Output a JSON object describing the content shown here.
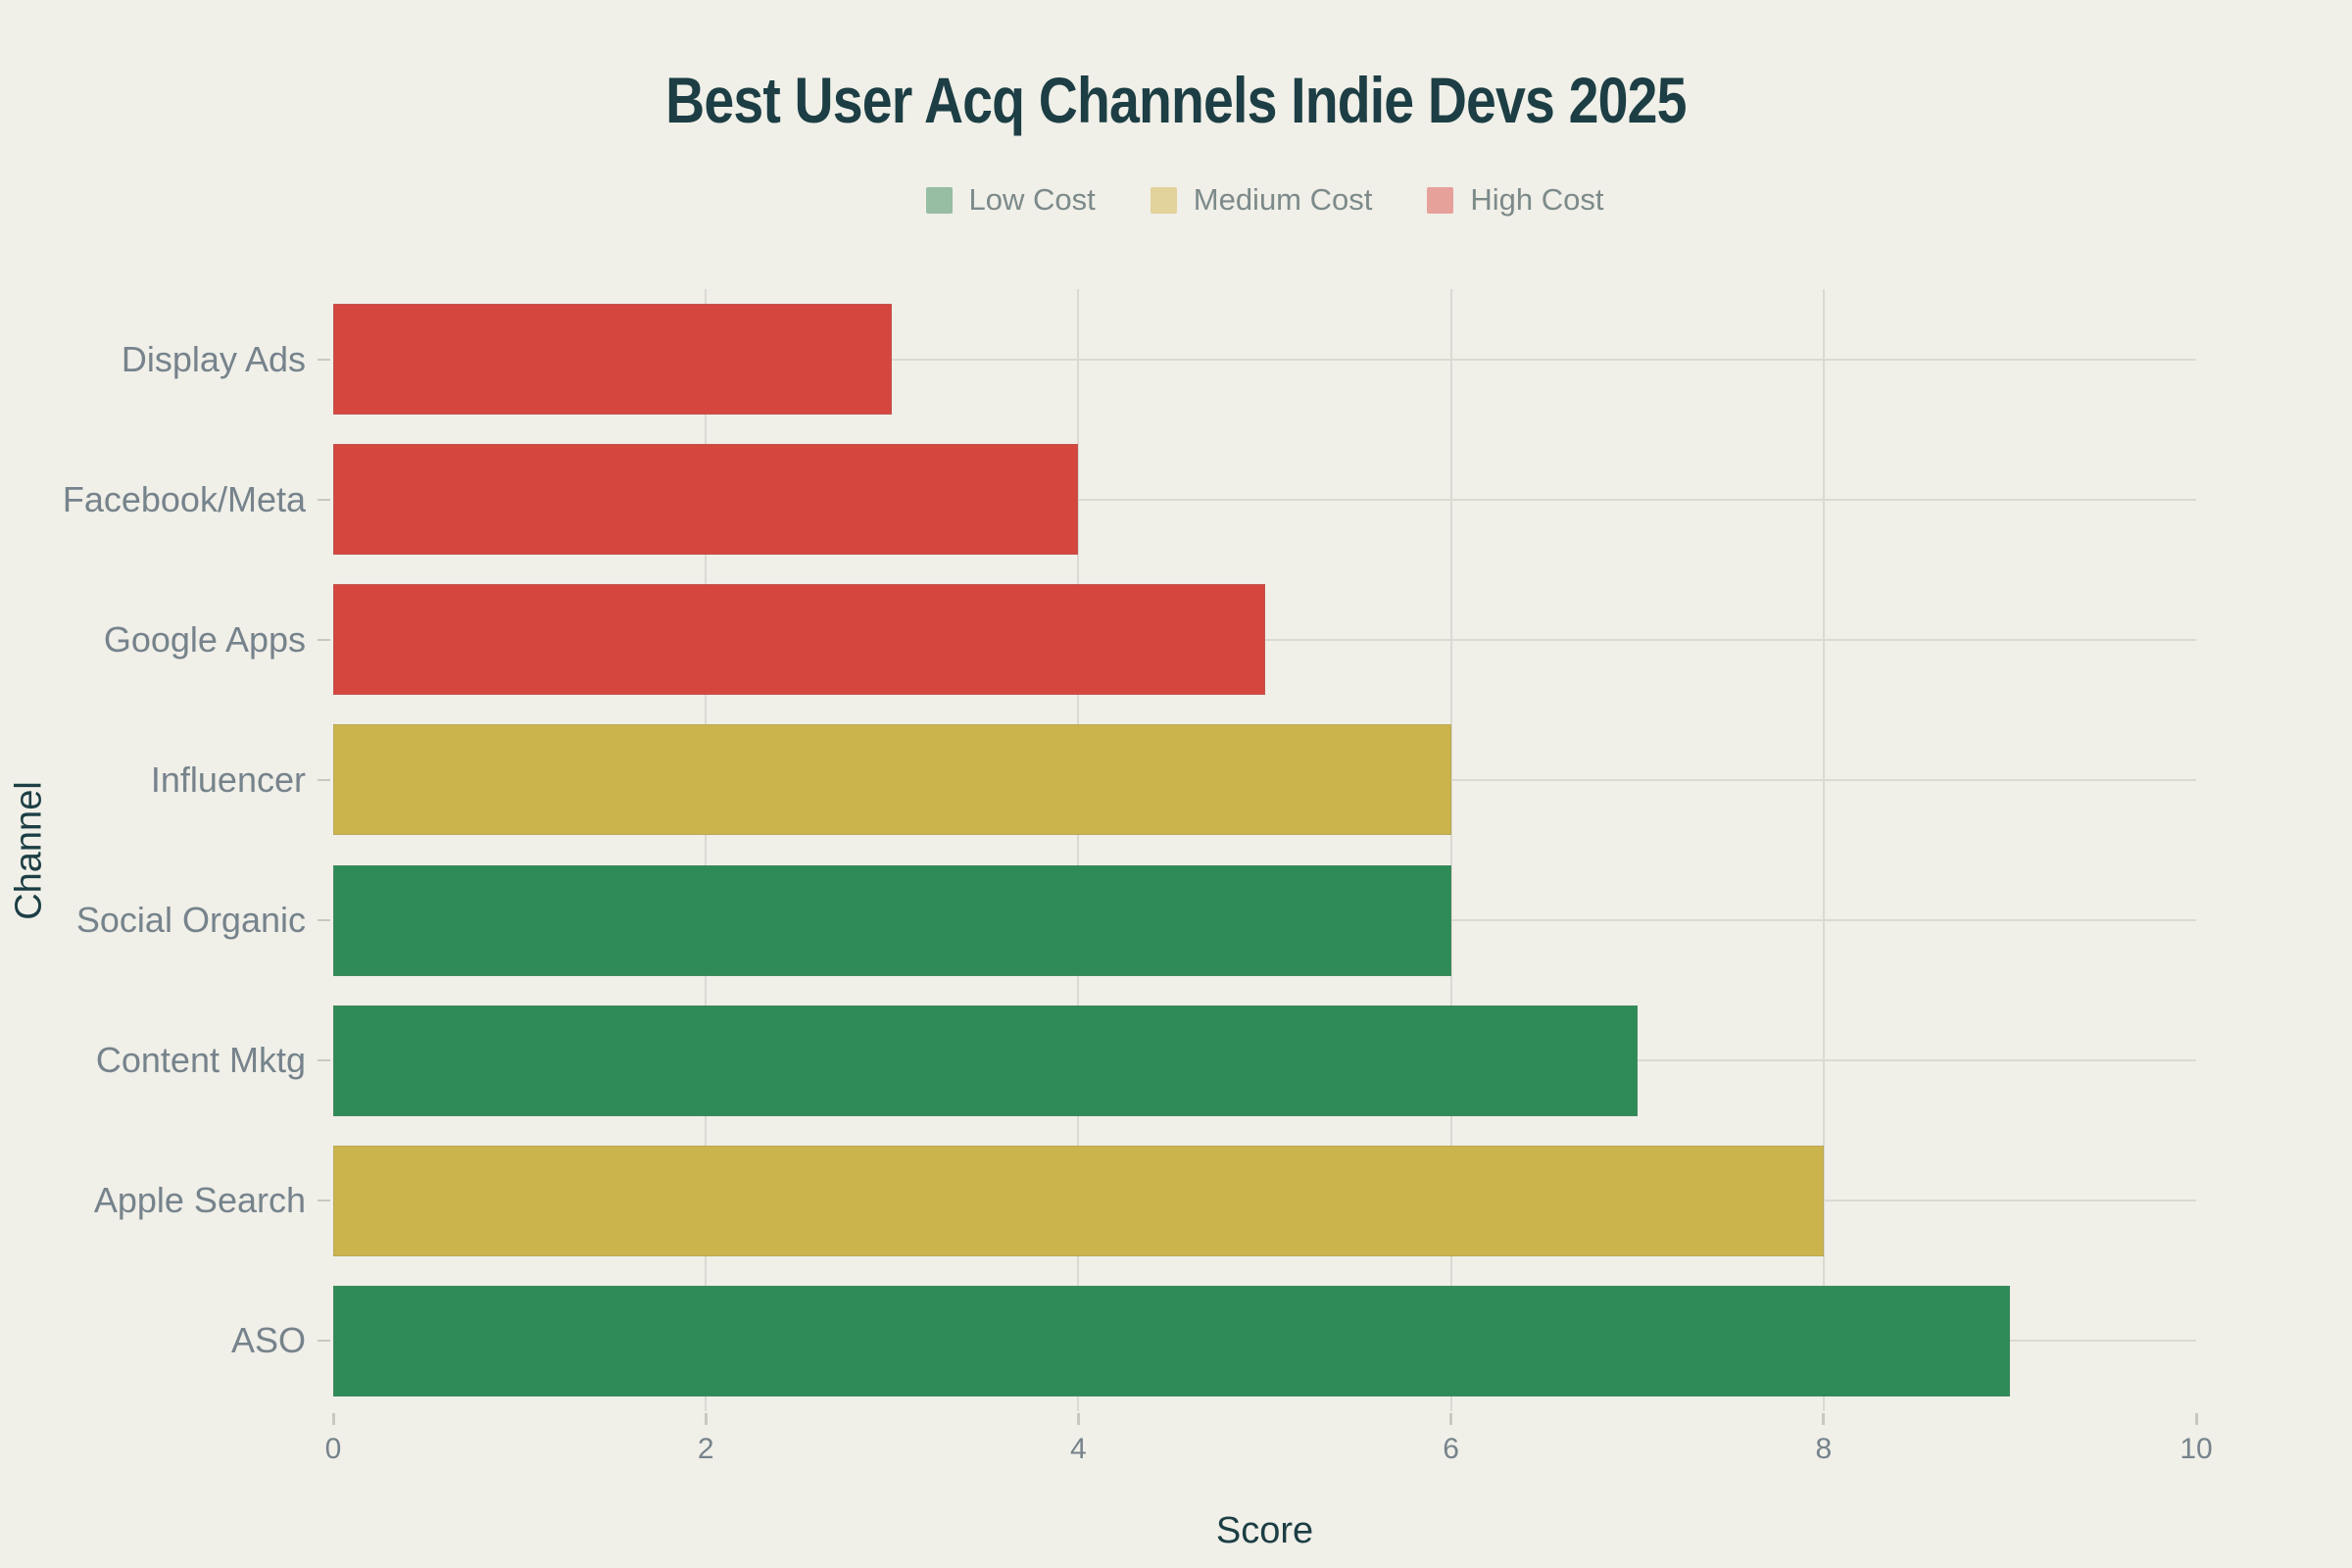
{
  "title": "Best User Acq Channels Indie Devs 2025",
  "colors": {
    "background": "#F0EFE8",
    "title_text": "#1C3E44",
    "axis_title_text": "#1C3E44",
    "tick_text": "#76838C",
    "legend_text": "#7C8A8A",
    "gridline": "#DBDAD2",
    "tick_mark": "#C9C8C0",
    "bar_low_cost": "#2E8B57",
    "bar_medium_cost": "#CCB44C",
    "bar_high_cost": "#D5463F",
    "legend_swatch_low": "#97BDA3",
    "legend_swatch_medium": "#E2D29B",
    "legend_swatch_high": "#E6A19B"
  },
  "legend": {
    "items": [
      {
        "label": "Low Cost",
        "tier": "low"
      },
      {
        "label": "Medium Cost",
        "tier": "medium"
      },
      {
        "label": "High Cost",
        "tier": "high"
      }
    ]
  },
  "chart_data": {
    "type": "bar",
    "orientation": "horizontal",
    "title": "Best User Acq Channels Indie Devs 2025",
    "xlabel": "Score",
    "ylabel": "Channel",
    "xlim": [
      0,
      10
    ],
    "xticks": [
      0,
      2,
      4,
      6,
      8,
      10
    ],
    "grid": true,
    "legend_position": "top-center",
    "categories_top_to_bottom": [
      "Display Ads",
      "Facebook/Meta",
      "Google Apps",
      "Influencer",
      "Social Organic",
      "Content Mktg",
      "Apple Search",
      "ASO"
    ],
    "values": [
      3,
      4,
      5,
      6,
      6,
      7,
      8,
      9
    ],
    "cost_tier": [
      "high",
      "high",
      "high",
      "medium",
      "low",
      "low",
      "medium",
      "low"
    ],
    "cost_tier_labels": [
      "High Cost",
      "High Cost",
      "High Cost",
      "Medium Cost",
      "Low Cost",
      "Low Cost",
      "Medium Cost",
      "Low Cost"
    ]
  }
}
